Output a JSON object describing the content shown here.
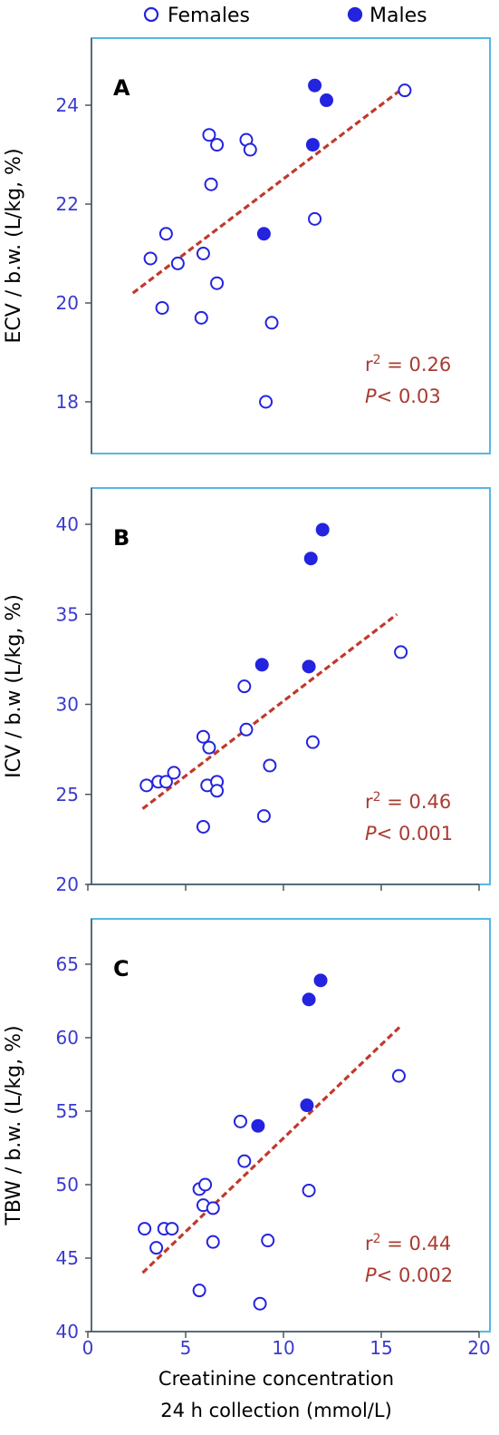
{
  "legend": {
    "females_label": "Females",
    "males_label": "Males"
  },
  "colors": {
    "marker": "#2323e0",
    "axis_tick_text": "#3a3ad0",
    "frame": "#56b7e6",
    "fit_line": "#c0392b",
    "stat_text": "#a83c32"
  },
  "x_axis": {
    "label_line1": "Creatinine concentration",
    "label_line2": "24 h collection (mmol/L)",
    "ticks": [
      "0",
      "5",
      "10",
      "15",
      "20"
    ]
  },
  "chart_data": [
    {
      "type": "scatter",
      "panel": "A",
      "ylabel": "ECV / b.w. (L/kg, %)",
      "xlim": [
        0,
        20
      ],
      "ylim": [
        16.9,
        25
      ],
      "yticks": [
        18,
        20,
        22,
        24
      ],
      "ytick_labels": [
        "18",
        "20",
        "22",
        "24"
      ],
      "stat_r2": "0.26",
      "stat_p": "0.03",
      "fit_line": [
        [
          2.3,
          20.2
        ],
        [
          16.3,
          24.4
        ]
      ],
      "series": [
        {
          "name": "Females",
          "points": [
            [
              3.2,
              20.9
            ],
            [
              4.0,
              21.4
            ],
            [
              4.6,
              20.8
            ],
            [
              3.8,
              19.9
            ],
            [
              5.8,
              19.7
            ],
            [
              6.2,
              23.4
            ],
            [
              6.6,
              23.2
            ],
            [
              6.3,
              22.4
            ],
            [
              5.9,
              21.0
            ],
            [
              6.6,
              20.4
            ],
            [
              8.1,
              23.3
            ],
            [
              8.3,
              23.1
            ],
            [
              9.4,
              19.6
            ],
            [
              9.1,
              18.0
            ],
            [
              11.6,
              21.7
            ],
            [
              16.2,
              24.3
            ]
          ]
        },
        {
          "name": "Males",
          "points": [
            [
              11.6,
              24.4
            ],
            [
              12.2,
              24.1
            ],
            [
              11.5,
              23.2
            ],
            [
              9.0,
              21.4
            ]
          ]
        }
      ]
    },
    {
      "type": "scatter",
      "panel": "B",
      "ylabel": "ICV / b.w (L/kg, %)",
      "xlim": [
        0,
        20
      ],
      "ylim": [
        20,
        42
      ],
      "yticks": [
        20,
        25,
        30,
        35,
        40
      ],
      "ytick_labels": [
        "20",
        "25",
        "30",
        "35",
        "40"
      ],
      "stat_r2": "0.46",
      "stat_p": "0.001",
      "fit_line": [
        [
          2.8,
          24.2
        ],
        [
          15.8,
          35.0
        ]
      ],
      "series": [
        {
          "name": "Females",
          "points": [
            [
              3.0,
              25.5
            ],
            [
              3.6,
              25.7
            ],
            [
              4.0,
              25.7
            ],
            [
              4.4,
              26.2
            ],
            [
              5.9,
              28.2
            ],
            [
              6.2,
              27.6
            ],
            [
              6.1,
              25.5
            ],
            [
              6.6,
              25.7
            ],
            [
              6.6,
              25.2
            ],
            [
              5.9,
              23.2
            ],
            [
              8.0,
              31.0
            ],
            [
              8.1,
              28.6
            ],
            [
              9.3,
              26.6
            ],
            [
              9.0,
              23.8
            ],
            [
              11.5,
              27.9
            ],
            [
              16.0,
              32.9
            ]
          ]
        },
        {
          "name": "Males",
          "points": [
            [
              8.9,
              32.2
            ],
            [
              11.3,
              32.1
            ],
            [
              11.4,
              38.1
            ],
            [
              12.0,
              39.7
            ]
          ]
        }
      ]
    },
    {
      "type": "scatter",
      "panel": "C",
      "ylabel": "TBW / b.w. (L/kg, %)",
      "xlim": [
        0,
        20
      ],
      "ylim": [
        40,
        67
      ],
      "yticks": [
        40,
        45,
        50,
        55,
        60,
        65
      ],
      "ytick_labels": [
        "40",
        "45",
        "50",
        "55",
        "60",
        "65"
      ],
      "stat_r2": "0.44",
      "stat_p": "0.002",
      "fit_line": [
        [
          2.8,
          44.0
        ],
        [
          16.0,
          60.8
        ]
      ],
      "series": [
        {
          "name": "Females",
          "points": [
            [
              2.9,
              47.0
            ],
            [
              3.9,
              47.0
            ],
            [
              4.3,
              47.0
            ],
            [
              3.5,
              45.7
            ],
            [
              5.7,
              49.7
            ],
            [
              6.0,
              50.0
            ],
            [
              5.9,
              48.6
            ],
            [
              6.4,
              48.4
            ],
            [
              6.4,
              46.1
            ],
            [
              5.7,
              42.8
            ],
            [
              7.8,
              54.3
            ],
            [
              8.0,
              51.6
            ],
            [
              9.2,
              46.2
            ],
            [
              8.8,
              41.9
            ],
            [
              11.3,
              49.6
            ],
            [
              15.9,
              57.4
            ]
          ]
        },
        {
          "name": "Males",
          "points": [
            [
              8.7,
              54.0
            ],
            [
              11.2,
              55.4
            ],
            [
              11.3,
              62.6
            ],
            [
              11.9,
              63.9
            ]
          ]
        }
      ]
    }
  ]
}
